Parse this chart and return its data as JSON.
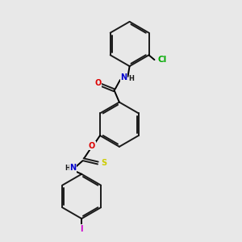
{
  "background_color": "#e8e8e8",
  "bond_color": "#1a1a1a",
  "atom_colors": {
    "O": "#dd0000",
    "N": "#0000cc",
    "S": "#cccc00",
    "Cl": "#00aa00",
    "I": "#cc00cc",
    "H": "#1a1a1a",
    "C": "#1a1a1a"
  },
  "figsize": [
    3.0,
    3.0
  ],
  "dpi": 100,
  "bond_lw": 1.4,
  "font_size": 7.0
}
